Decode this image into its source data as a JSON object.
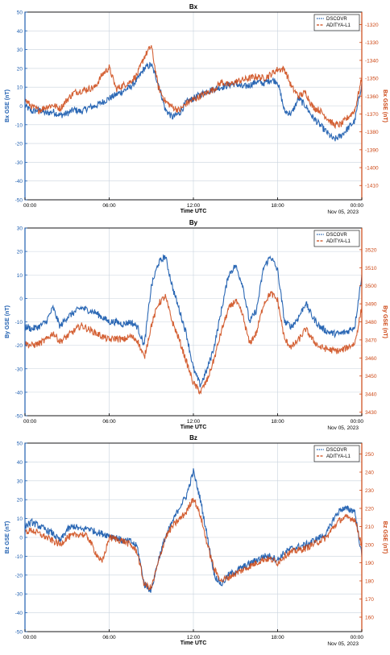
{
  "colors": {
    "dscovr": "#1f5fb0",
    "aditya": "#cc4512",
    "axis_left": "#1f5fb0",
    "axis_right": "#cc4512",
    "grid": "#c9d3de",
    "frame": "#000000"
  },
  "chart_data": [
    {
      "type": "line",
      "title": "Bx",
      "xlabel": "Time UTC",
      "ylabel": "Bx GSE (nT)",
      "ylabel_right": "Bx GSE (nT)",
      "date_label": "Nov 05, 2023",
      "xticks": [
        "00:00",
        "06:00",
        "12:00",
        "18:00",
        "00:00"
      ],
      "xlim_hours": [
        0,
        24
      ],
      "ylim": [
        -50,
        50
      ],
      "yticks": [
        50,
        40,
        30,
        20,
        10,
        0,
        -10,
        -20,
        -30,
        -40,
        -50
      ],
      "ylim_right": [
        -1418,
        -1313
      ],
      "yticks_right": [
        -1320,
        -1330,
        -1340,
        -1350,
        -1360,
        -1370,
        -1380,
        -1390,
        -1400,
        -1410
      ],
      "grid": true,
      "legend_position": "top-right",
      "series": [
        {
          "name": "DSCOVR",
          "axis": "left",
          "x": [
            0,
            0.5,
            1,
            1.5,
            2,
            2.5,
            3,
            3.5,
            4,
            4.5,
            5,
            5.5,
            6,
            6.5,
            7,
            7.5,
            8,
            8.5,
            9,
            9.5,
            10,
            10.5,
            11,
            11.5,
            12,
            12.5,
            13,
            13.5,
            14,
            14.5,
            15,
            15.5,
            16,
            16.5,
            17,
            17.5,
            18,
            18.5,
            19,
            19.5,
            20,
            20.5,
            21,
            21.5,
            22,
            22.5,
            23,
            23.5,
            24
          ],
          "y": [
            0,
            -3,
            -2,
            -4,
            -3,
            -5,
            -4,
            -2,
            -3,
            -1,
            0,
            2,
            4,
            6,
            8,
            10,
            14,
            20,
            22,
            12,
            -2,
            -6,
            -4,
            2,
            4,
            6,
            8,
            9,
            10,
            11,
            12,
            10,
            11,
            13,
            12,
            14,
            13,
            -3,
            -4,
            4,
            0,
            -6,
            -10,
            -14,
            -18,
            -16,
            -12,
            -8,
            12
          ]
        },
        {
          "name": "ADITYA-L1",
          "axis": "right",
          "x": [
            0,
            0.5,
            1,
            1.5,
            2,
            2.5,
            3,
            3.5,
            4,
            4.5,
            5,
            5.5,
            6,
            6.5,
            7,
            7.5,
            8,
            8.5,
            9,
            9.5,
            10,
            10.5,
            11,
            11.5,
            12,
            12.5,
            13,
            13.5,
            14,
            14.5,
            15,
            15.5,
            16,
            16.5,
            17,
            17.5,
            18,
            18.5,
            19,
            19.5,
            20,
            20.5,
            21,
            21.5,
            22,
            22.5,
            23,
            23.5,
            24
          ],
          "y": [
            -1362,
            -1366,
            -1368,
            -1366,
            -1365,
            -1367,
            -1362,
            -1358,
            -1357,
            -1356,
            -1355,
            -1348,
            -1344,
            -1356,
            -1354,
            -1352,
            -1348,
            -1338,
            -1332,
            -1355,
            -1363,
            -1366,
            -1368,
            -1364,
            -1362,
            -1360,
            -1358,
            -1356,
            -1352,
            -1354,
            -1352,
            -1351,
            -1350,
            -1349,
            -1350,
            -1348,
            -1345,
            -1345,
            -1355,
            -1360,
            -1358,
            -1366,
            -1368,
            -1372,
            -1376,
            -1376,
            -1372,
            -1368,
            -1350
          ]
        }
      ]
    },
    {
      "type": "line",
      "title": "By",
      "xlabel": "Time UTC",
      "ylabel": "By GSE (nT)",
      "ylabel_right": "By GSE (nT)",
      "date_label": "Nov 05, 2023",
      "xticks": [
        "00:00",
        "06:00",
        "12:00",
        "18:00",
        "00:00"
      ],
      "xlim_hours": [
        0,
        24
      ],
      "ylim": [
        -50,
        30
      ],
      "yticks": [
        30,
        20,
        10,
        0,
        -10,
        -20,
        -30,
        -40,
        -50
      ],
      "ylim_right": [
        3428,
        3532
      ],
      "yticks_right": [
        3520,
        3510,
        3500,
        3490,
        3480,
        3470,
        3460,
        3450,
        3440,
        3430
      ],
      "grid": true,
      "legend_position": "top-right",
      "series": [
        {
          "name": "DSCOVR",
          "axis": "left",
          "x": [
            0,
            0.5,
            1,
            1.5,
            2,
            2.5,
            3,
            3.5,
            4,
            4.5,
            5,
            5.5,
            6,
            6.5,
            7,
            7.5,
            8,
            8.5,
            9,
            9.5,
            10,
            10.5,
            11,
            11.5,
            12,
            12.5,
            13,
            13.5,
            14,
            14.5,
            15,
            15.5,
            16,
            16.5,
            17,
            17.5,
            18,
            18.5,
            19,
            19.5,
            20,
            20.5,
            21,
            21.5,
            22,
            22.5,
            23,
            23.5,
            24
          ],
          "y": [
            -12,
            -13,
            -12,
            -10,
            -4,
            -12,
            -8,
            -6,
            -4,
            -5,
            -6,
            -8,
            -10,
            -10,
            -11,
            -10,
            -12,
            -20,
            5,
            15,
            18,
            5,
            -5,
            -15,
            -30,
            -37,
            -30,
            -20,
            -5,
            10,
            14,
            6,
            -10,
            -5,
            13,
            18,
            12,
            -10,
            -12,
            -8,
            -2,
            -8,
            -12,
            -14,
            -15,
            -15,
            -14,
            -12,
            10
          ]
        },
        {
          "name": "ADITYA-L1",
          "axis": "right",
          "x": [
            0,
            0.5,
            1,
            1.5,
            2,
            2.5,
            3,
            3.5,
            4,
            4.5,
            5,
            5.5,
            6,
            6.5,
            7,
            7.5,
            8,
            8.5,
            9,
            9.5,
            10,
            10.5,
            11,
            11.5,
            12,
            12.5,
            13,
            13.5,
            14,
            14.5,
            15,
            15.5,
            16,
            16.5,
            17,
            17.5,
            18,
            18.5,
            19,
            19.5,
            20,
            20.5,
            21,
            21.5,
            22,
            22.5,
            23,
            23.5,
            24
          ],
          "y": [
            3468,
            3467,
            3468,
            3470,
            3474,
            3469,
            3472,
            3475,
            3478,
            3476,
            3474,
            3472,
            3470,
            3471,
            3470,
            3472,
            3470,
            3460,
            3478,
            3490,
            3494,
            3480,
            3470,
            3458,
            3446,
            3441,
            3448,
            3460,
            3475,
            3487,
            3492,
            3484,
            3468,
            3474,
            3490,
            3496,
            3492,
            3470,
            3466,
            3470,
            3476,
            3470,
            3466,
            3465,
            3464,
            3464,
            3466,
            3468,
            3488
          ]
        }
      ]
    },
    {
      "type": "line",
      "title": "Bz",
      "xlabel": "Time UTC",
      "ylabel": "Bz GSE (nT)",
      "ylabel_right": "Bz GSE (nT)",
      "date_label": "Nov 05, 2023",
      "xticks": [
        "00:00",
        "06:00",
        "12:00",
        "18:00",
        "00:00"
      ],
      "xlim_hours": [
        0,
        24
      ],
      "ylim": [
        -50,
        50
      ],
      "yticks": [
        50,
        40,
        30,
        20,
        10,
        0,
        -10,
        -20,
        -30,
        -40,
        -50
      ],
      "ylim_right": [
        152,
        256
      ],
      "yticks_right": [
        250,
        240,
        230,
        220,
        210,
        200,
        190,
        180,
        170,
        160
      ],
      "grid": true,
      "legend_position": "top-right",
      "series": [
        {
          "name": "DSCOVR",
          "axis": "left",
          "x": [
            0,
            0.5,
            1,
            1.5,
            2,
            2.5,
            3,
            3.5,
            4,
            4.5,
            5,
            5.5,
            6,
            6.5,
            7,
            7.5,
            8,
            8.5,
            9,
            9.5,
            10,
            10.5,
            11,
            11.5,
            12,
            12.5,
            13,
            13.5,
            14,
            14.5,
            15,
            15.5,
            16,
            16.5,
            17,
            17.5,
            18,
            18.5,
            19,
            19.5,
            20,
            20.5,
            21,
            21.5,
            22,
            22.5,
            23,
            23.5,
            24
          ],
          "y": [
            6,
            8,
            6,
            4,
            2,
            -2,
            4,
            6,
            4,
            5,
            3,
            2,
            1,
            0,
            -2,
            -2,
            -5,
            -25,
            -28,
            -12,
            0,
            8,
            16,
            22,
            35,
            20,
            0,
            -20,
            -25,
            -20,
            -18,
            -16,
            -14,
            -12,
            -10,
            -10,
            -12,
            -8,
            -6,
            -5,
            -4,
            -2,
            0,
            2,
            10,
            15,
            15,
            14,
            -10
          ]
        },
        {
          "name": "ADITYA-L1",
          "axis": "right",
          "x": [
            0,
            0.5,
            1,
            1.5,
            2,
            2.5,
            3,
            3.5,
            4,
            4.5,
            5,
            5.5,
            6,
            6.5,
            7,
            7.5,
            8,
            8.5,
            9,
            9.5,
            10,
            10.5,
            11,
            11.5,
            12,
            12.5,
            13,
            13.5,
            14,
            14.5,
            15,
            15.5,
            16,
            16.5,
            17,
            17.5,
            18,
            18.5,
            19,
            19.5,
            20,
            20.5,
            21,
            21.5,
            22,
            22.5,
            23,
            23.5,
            24
          ],
          "y": [
            207,
            208,
            206,
            204,
            202,
            200,
            204,
            205,
            206,
            204,
            196,
            190,
            204,
            203,
            202,
            200,
            196,
            178,
            176,
            190,
            204,
            210,
            214,
            218,
            226,
            216,
            200,
            186,
            180,
            182,
            184,
            186,
            188,
            190,
            192,
            192,
            190,
            194,
            196,
            197,
            198,
            200,
            202,
            204,
            210,
            214,
            215,
            214,
            200
          ]
        }
      ]
    }
  ]
}
